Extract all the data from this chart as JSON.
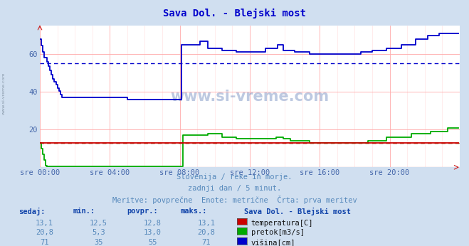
{
  "title": "Sava Dol. - Blejski most",
  "title_color": "#0000cc",
  "bg_color": "#d0dff0",
  "plot_bg_color": "#ffffff",
  "grid_color": "#ffaaaa",
  "tick_color": "#4466aa",
  "text_color": "#5588bb",
  "xlim": [
    0,
    288
  ],
  "ylim": [
    0,
    75
  ],
  "yticks": [
    20,
    40,
    60
  ],
  "xtick_labels": [
    "sre 00:00",
    "sre 04:00",
    "sre 08:00",
    "sre 12:00",
    "sre 16:00",
    "sre 20:00"
  ],
  "xtick_positions": [
    0,
    48,
    96,
    144,
    192,
    240
  ],
  "subtitle1": "Slovenija / reke in morje.",
  "subtitle2": "zadnji dan / 5 minut.",
  "subtitle3": "Meritve: povprečne  Enote: metrične  Črta: prva meritev",
  "legend_title": "Sava Dol. - Blejski most",
  "legend_items": [
    "temperatura[C]",
    "pretok[m3/s]",
    "višina[cm]"
  ],
  "legend_colors": [
    "#cc0000",
    "#00aa00",
    "#0000cc"
  ],
  "table_headers": [
    "sedaj:",
    "min.:",
    "povpr.:",
    "maks.:"
  ],
  "table_data": [
    [
      "13,1",
      "12,5",
      "12,8",
      "13,1"
    ],
    [
      "20,8",
      "5,3",
      "13,0",
      "20,8"
    ],
    [
      "71",
      "35",
      "55",
      "71"
    ]
  ],
  "temp_avg": 12.8,
  "temp_min": 12.5,
  "temp_max": 13.1,
  "pretok_avg": 13.0,
  "pretok_min": 5.3,
  "pretok_max": 20.8,
  "visina_avg": 55,
  "visina_min": 35,
  "visina_max": 71
}
